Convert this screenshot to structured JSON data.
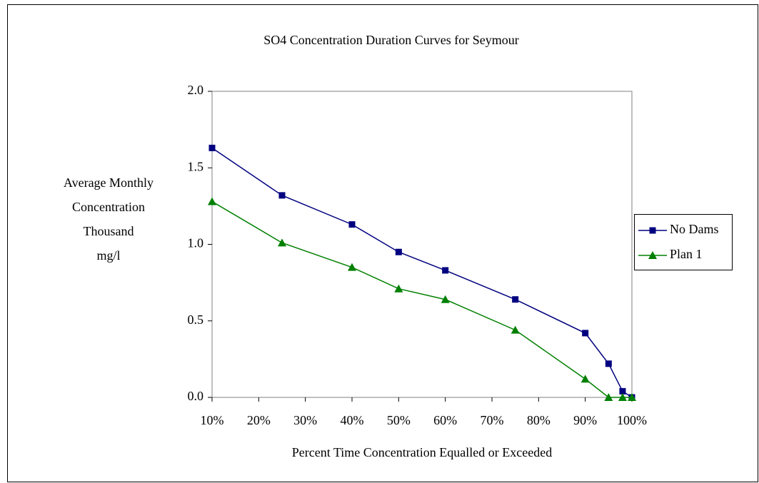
{
  "chart_data": {
    "type": "line",
    "title": "SO4 Concentration Duration Curves for Seymour",
    "y_label": [
      "Average Monthly",
      "Concentration",
      "Thousand",
      "mg/l"
    ],
    "x_label": "Percent Time Concentration Equalled or Exceeded",
    "x": [
      10,
      25,
      40,
      50,
      60,
      75,
      90,
      95,
      98,
      100
    ],
    "series": [
      {
        "name": "No Dams",
        "color": "#000080",
        "marker": "square",
        "values": [
          1.63,
          1.32,
          1.13,
          0.95,
          0.83,
          0.64,
          0.42,
          0.22,
          0.04,
          0
        ]
      },
      {
        "name": "Plan 1",
        "color": "#008000",
        "marker": "triangle",
        "values": [
          1.28,
          1.01,
          0.85,
          0.71,
          0.64,
          0.44,
          0.12,
          0,
          0,
          0
        ]
      }
    ],
    "xlim": [
      10,
      100
    ],
    "xticks": [
      {
        "value": 10,
        "label": "10%"
      },
      {
        "value": 20,
        "label": "20%"
      },
      {
        "value": 30,
        "label": "30%"
      },
      {
        "value": 40,
        "label": "40%"
      },
      {
        "value": 50,
        "label": "50%"
      },
      {
        "value": 60,
        "label": "60%"
      },
      {
        "value": 70,
        "label": "70%"
      },
      {
        "value": 80,
        "label": "80%"
      },
      {
        "value": 90,
        "label": "90%"
      },
      {
        "value": 100,
        "label": "100%"
      }
    ],
    "ylim": [
      0,
      2
    ],
    "yticks": [
      {
        "value": 0,
        "label": "0.0"
      },
      0.5,
      {
        "value": 1,
        "label": "1.0"
      },
      1.5,
      {
        "value": 2,
        "label": "2.0"
      }
    ],
    "legend": "right"
  }
}
